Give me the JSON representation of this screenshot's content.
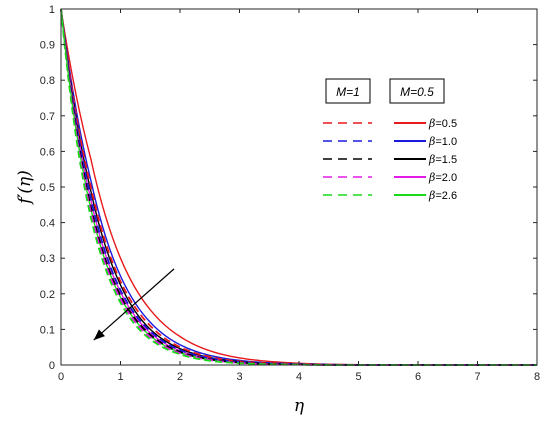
{
  "chart_data": {
    "type": "line",
    "xlabel": "η",
    "ylabel": "f′(η)",
    "xlim": [
      0,
      8
    ],
    "ylim": [
      0,
      1
    ],
    "xticks": [
      "0",
      "1",
      "2",
      "3",
      "4",
      "5",
      "6",
      "7",
      "8"
    ],
    "yticks": [
      "0",
      "0.1",
      "0.2",
      "0.3",
      "0.4",
      "0.5",
      "0.6",
      "0.7",
      "0.8",
      "0.9",
      "1"
    ],
    "grid": false,
    "legend_position": "top-right",
    "legend_headers": [
      "M=1",
      "M=0.5"
    ],
    "beta_values": [
      "=0.5",
      "=1.0",
      "=1.5",
      "=2.0",
      "=2.6"
    ],
    "beta_symbol": "β",
    "colors": [
      "#e8191b",
      "#1a1adf",
      "#000000",
      "#e619e6",
      "#19d919"
    ],
    "x": [
      0,
      0.5,
      1,
      1.5,
      2,
      2.5,
      3,
      3.5,
      4,
      4.5,
      5,
      5.5,
      6,
      6.5,
      7,
      7.5,
      8
    ],
    "series": [
      {
        "group": "M=0.5",
        "beta": "0.5",
        "style": "solid",
        "values": [
          1.0,
          0.58,
          0.3,
          0.155,
          0.08,
          0.04,
          0.02,
          0.01,
          0.005,
          0.002,
          0.001,
          0.0,
          0.0,
          0.0,
          0.0,
          0.0,
          0.0
        ]
      },
      {
        "group": "M=0.5",
        "beta": "1.0",
        "style": "solid",
        "values": [
          1.0,
          0.52,
          0.25,
          0.12,
          0.057,
          0.027,
          0.013,
          0.006,
          0.003,
          0.001,
          0.0,
          0.0,
          0.0,
          0.0,
          0.0,
          0.0,
          0.0
        ]
      },
      {
        "group": "M=0.5",
        "beta": "1.5",
        "style": "solid",
        "values": [
          1.0,
          0.49,
          0.225,
          0.1,
          0.046,
          0.021,
          0.01,
          0.004,
          0.002,
          0.001,
          0.0,
          0.0,
          0.0,
          0.0,
          0.0,
          0.0,
          0.0
        ]
      },
      {
        "group": "M=0.5",
        "beta": "2.0",
        "style": "solid",
        "values": [
          1.0,
          0.465,
          0.205,
          0.09,
          0.04,
          0.018,
          0.008,
          0.003,
          0.001,
          0.0,
          0.0,
          0.0,
          0.0,
          0.0,
          0.0,
          0.0,
          0.0
        ]
      },
      {
        "group": "M=0.5",
        "beta": "2.6",
        "style": "solid",
        "values": [
          1.0,
          0.44,
          0.19,
          0.082,
          0.035,
          0.015,
          0.006,
          0.003,
          0.001,
          0.0,
          0.0,
          0.0,
          0.0,
          0.0,
          0.0,
          0.0,
          0.0
        ]
      },
      {
        "group": "M=1",
        "beta": "0.5",
        "style": "dashed",
        "values": [
          1.0,
          0.5,
          0.235,
          0.11,
          0.05,
          0.023,
          0.01,
          0.005,
          0.002,
          0.001,
          0.0,
          0.0,
          0.0,
          0.0,
          0.0,
          0.0,
          0.0
        ]
      },
      {
        "group": "M=1",
        "beta": "1.0",
        "style": "dashed",
        "values": [
          1.0,
          0.47,
          0.21,
          0.095,
          0.042,
          0.019,
          0.008,
          0.004,
          0.002,
          0.001,
          0.0,
          0.0,
          0.0,
          0.0,
          0.0,
          0.0,
          0.0
        ]
      },
      {
        "group": "M=1",
        "beta": "1.5",
        "style": "dashed",
        "values": [
          1.0,
          0.445,
          0.195,
          0.085,
          0.037,
          0.016,
          0.007,
          0.003,
          0.001,
          0.0,
          0.0,
          0.0,
          0.0,
          0.0,
          0.0,
          0.0,
          0.0
        ]
      },
      {
        "group": "M=1",
        "beta": "2.0",
        "style": "dashed",
        "values": [
          1.0,
          0.43,
          0.185,
          0.078,
          0.033,
          0.014,
          0.006,
          0.002,
          0.001,
          0.0,
          0.0,
          0.0,
          0.0,
          0.0,
          0.0,
          0.0,
          0.0
        ]
      },
      {
        "group": "M=1",
        "beta": "2.6",
        "style": "dashed",
        "values": [
          1.0,
          0.415,
          0.175,
          0.072,
          0.03,
          0.012,
          0.005,
          0.002,
          0.001,
          0.0,
          0.0,
          0.0,
          0.0,
          0.0,
          0.0,
          0.0,
          0.0
        ]
      }
    ],
    "annotation": {
      "type": "arrow",
      "from": [
        1.9,
        0.27
      ],
      "to": [
        0.55,
        0.07
      ]
    }
  }
}
